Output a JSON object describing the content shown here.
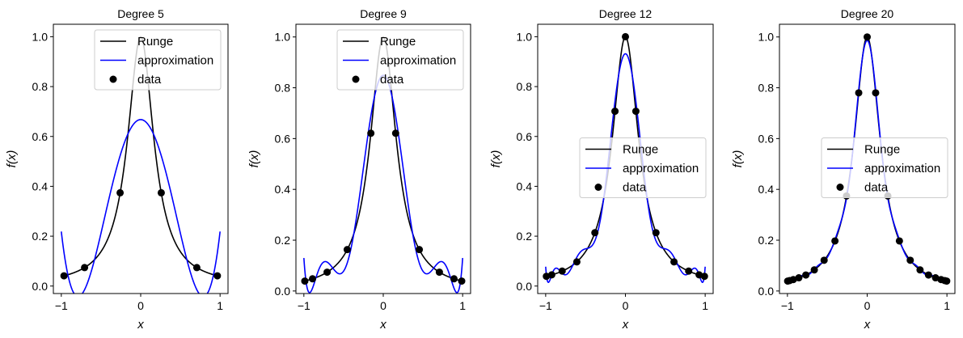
{
  "chart_data": [
    {
      "type": "line",
      "title": "Degree 5",
      "xlabel": "x",
      "ylabel": "f(x)",
      "xlim": [
        -1.1,
        1.1
      ],
      "ylim": [
        -0.03,
        1.05
      ],
      "xticks": [
        -1,
        0,
        1
      ],
      "xtick_labels": [
        "−1",
        "0",
        "1"
      ],
      "yticks": [
        0.0,
        0.2,
        0.4,
        0.6,
        0.8,
        1.0
      ],
      "ytick_labels": [
        "0.0",
        "0.2",
        "0.4",
        "0.6",
        "0.8",
        "1.0"
      ],
      "series": [
        {
          "name": "Runge",
          "color": "#000000",
          "function": "1/(1+25x^2)",
          "x_range": [
            -1,
            1
          ]
        },
        {
          "name": "approximation",
          "color": "#0000ff",
          "fit_degree": 5,
          "x_range": [
            -1,
            1
          ]
        },
        {
          "name": "data",
          "color": "#000000",
          "marker": "circle",
          "x": [
            -0.966,
            -0.707,
            -0.259,
            0.259,
            0.707,
            0.966
          ],
          "y": [
            0.041,
            0.074,
            0.374,
            0.374,
            0.074,
            0.041
          ]
        }
      ],
      "legend": {
        "position": "upper-right",
        "entries": [
          "Runge",
          "approximation",
          "data"
        ]
      }
    },
    {
      "type": "line",
      "title": "Degree 9",
      "xlabel": "x",
      "ylabel": "f(x)",
      "xlim": [
        -1.1,
        1.1
      ],
      "ylim": [
        -0.01,
        1.05
      ],
      "xticks": [
        -1,
        0,
        1
      ],
      "xtick_labels": [
        "−1",
        "0",
        "1"
      ],
      "yticks": [
        0.0,
        0.2,
        0.4,
        0.6,
        0.8,
        1.0
      ],
      "ytick_labels": [
        "0.0",
        "0.2",
        "0.4",
        "0.6",
        "0.8",
        "1.0"
      ],
      "series": [
        {
          "name": "Runge",
          "color": "#000000",
          "function": "1/(1+25x^2)",
          "x_range": [
            -1,
            1
          ]
        },
        {
          "name": "approximation",
          "color": "#0000ff",
          "fit_degree": 9,
          "x_range": [
            -1,
            1
          ]
        },
        {
          "name": "data",
          "color": "#000000",
          "marker": "circle",
          "x": [
            -0.988,
            -0.891,
            -0.707,
            -0.454,
            -0.156,
            0.156,
            0.454,
            0.707,
            0.891,
            0.988
          ],
          "y": [
            0.039,
            0.048,
            0.074,
            0.163,
            0.621,
            0.621,
            0.163,
            0.074,
            0.048,
            0.039
          ]
        }
      ],
      "legend": {
        "position": "upper-right",
        "entries": [
          "Runge",
          "approximation",
          "data"
        ]
      }
    },
    {
      "type": "line",
      "title": "Degree 12",
      "xlabel": "x",
      "ylabel": "f(x)",
      "xlim": [
        -1.1,
        1.1
      ],
      "ylim": [
        -0.03,
        1.05
      ],
      "xticks": [
        -1,
        0,
        1
      ],
      "xtick_labels": [
        "−1",
        "0",
        "1"
      ],
      "yticks": [
        0.0,
        0.2,
        0.4,
        0.6,
        0.8,
        1.0
      ],
      "ytick_labels": [
        "0.0",
        "0.2",
        "0.4",
        "0.6",
        "0.8",
        "1.0"
      ],
      "series": [
        {
          "name": "Runge",
          "color": "#000000",
          "function": "1/(1+25x^2)",
          "x_range": [
            -1,
            1
          ]
        },
        {
          "name": "approximation",
          "color": "#0000ff",
          "fit_degree": 12,
          "x_range": [
            -1,
            1
          ]
        },
        {
          "name": "data",
          "color": "#000000",
          "marker": "circle",
          "x": [
            -0.991,
            -0.924,
            -0.793,
            -0.609,
            -0.383,
            -0.131,
            0.131,
            0.383,
            0.609,
            0.793,
            0.924,
            0.991,
            0.0
          ],
          "y": [
            0.039,
            0.045,
            0.06,
            0.097,
            0.214,
            0.701,
            0.701,
            0.214,
            0.097,
            0.06,
            0.045,
            0.039,
            1.0
          ]
        }
      ],
      "legend": {
        "position": "center-right",
        "entries": [
          "Runge",
          "approximation",
          "data"
        ]
      }
    },
    {
      "type": "line",
      "title": "Degree 20",
      "xlabel": "x",
      "ylabel": "f(x)",
      "xlim": [
        -1.1,
        1.1
      ],
      "ylim": [
        -0.01,
        1.05
      ],
      "xticks": [
        -1,
        0,
        1
      ],
      "xtick_labels": [
        "−1",
        "0",
        "1"
      ],
      "yticks": [
        0.0,
        0.2,
        0.4,
        0.6,
        0.8,
        1.0
      ],
      "ytick_labels": [
        "0.0",
        "0.2",
        "0.4",
        "0.6",
        "0.8",
        "1.0"
      ],
      "series": [
        {
          "name": "Runge",
          "color": "#000000",
          "function": "1/(1+25x^2)",
          "x_range": [
            -1,
            1
          ]
        },
        {
          "name": "approximation",
          "color": "#0000ff",
          "fit_degree": 20,
          "x_range": [
            -1,
            1
          ]
        },
        {
          "name": "data",
          "color": "#000000",
          "marker": "circle",
          "x": [
            -0.997,
            -0.972,
            -0.926,
            -0.857,
            -0.769,
            -0.663,
            -0.54,
            -0.404,
            -0.259,
            -0.106,
            0.0,
            0.106,
            0.259,
            0.404,
            0.54,
            0.663,
            0.769,
            0.857,
            0.926,
            0.972,
            0.997
          ],
          "y": [
            0.039,
            0.041,
            0.045,
            0.052,
            0.063,
            0.083,
            0.121,
            0.197,
            0.374,
            0.78,
            1.0,
            0.78,
            0.374,
            0.197,
            0.121,
            0.083,
            0.063,
            0.052,
            0.045,
            0.041,
            0.039
          ]
        }
      ],
      "legend": {
        "position": "center-right",
        "entries": [
          "Runge",
          "approximation",
          "data"
        ]
      }
    }
  ]
}
